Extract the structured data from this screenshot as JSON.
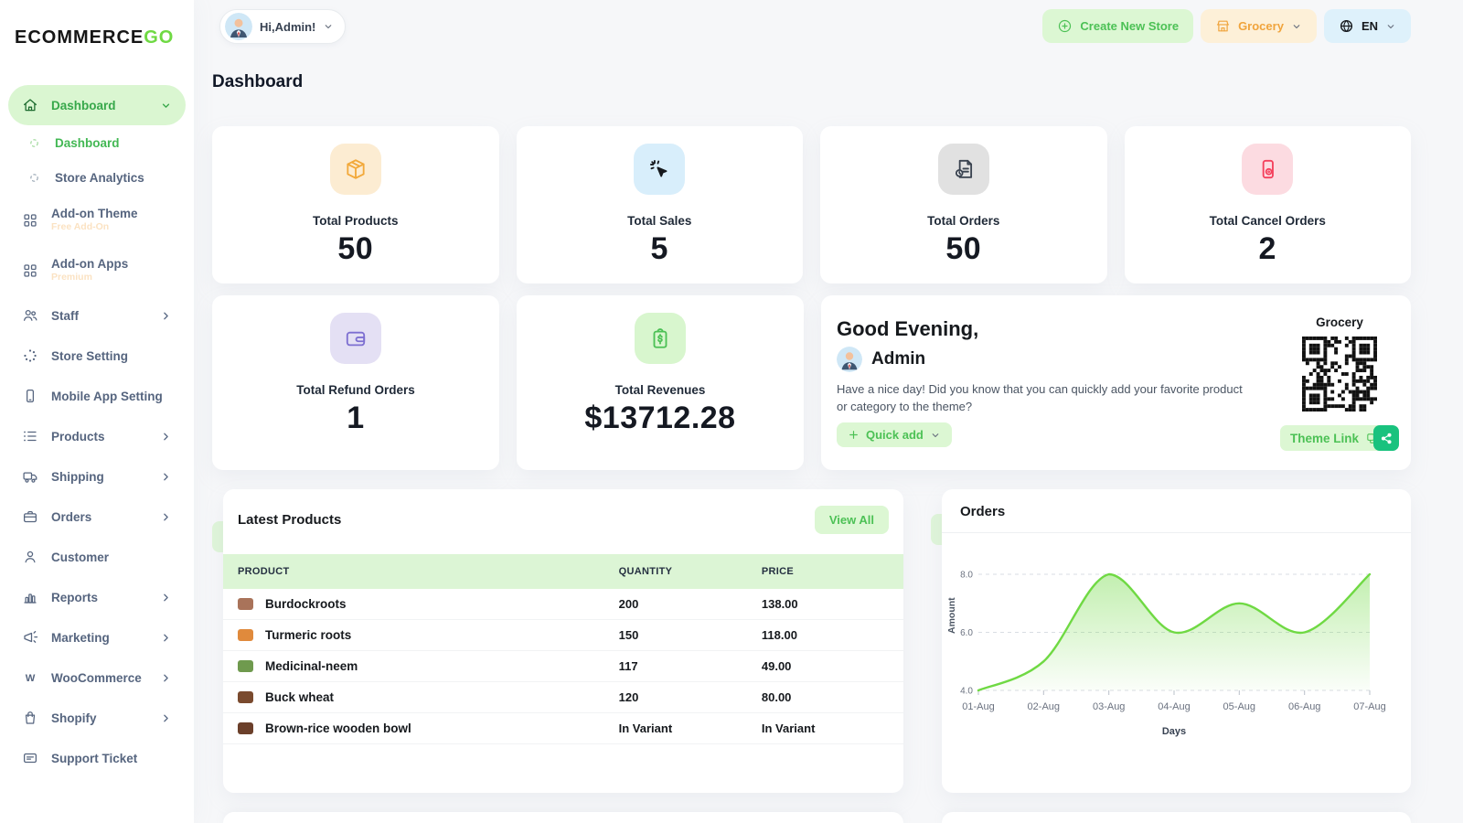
{
  "colors": {
    "accent_green": "#6fd943",
    "accent_green_text": "#4cc155",
    "accent_green_bg": "#dcf7d3",
    "orange": "#f0a43c",
    "orange_bg": "#fdf0d8",
    "blue_bg": "#def1fb",
    "share_button": "#19c27e",
    "table_header_bg": "#dcf5d5"
  },
  "brand": {
    "logo_text": "ECOMMERCE",
    "logo_accent": "GO"
  },
  "topbar": {
    "greeting": "Hi,Admin!",
    "create_store": "Create New Store",
    "store": "Grocery",
    "language": "EN"
  },
  "page_title": "Dashboard",
  "sidebar": {
    "items": [
      {
        "name": "sidebar-group-dashboard",
        "label": "Dashboard",
        "icon": "home-icon",
        "type": "group",
        "chevron": "down",
        "active": true
      },
      {
        "name": "sidebar-item-dashboard",
        "label": "Dashboard",
        "icon": "loader-icon",
        "type": "sub",
        "active": true
      },
      {
        "name": "sidebar-item-store-analytics",
        "label": "Store Analytics",
        "icon": "loader-icon",
        "type": "sub"
      },
      {
        "name": "sidebar-item-addon-theme",
        "label": "Add-on Theme",
        "icon": "grid-icon",
        "badge": "Free Add-On"
      },
      {
        "name": "sidebar-item-addon-apps",
        "label": "Add-on Apps",
        "icon": "grid-icon",
        "badge": "Premium"
      },
      {
        "name": "sidebar-item-staff",
        "label": "Staff",
        "icon": "users-icon",
        "chevron": "right"
      },
      {
        "name": "sidebar-item-store-setting",
        "label": "Store Setting",
        "icon": "spinner-icon"
      },
      {
        "name": "sidebar-item-mobile-app-setting",
        "label": "Mobile App Setting",
        "icon": "mobile-icon"
      },
      {
        "name": "sidebar-item-products",
        "label": "Products",
        "icon": "list-icon",
        "chevron": "right"
      },
      {
        "name": "sidebar-item-shipping",
        "label": "Shipping",
        "icon": "truck-icon",
        "chevron": "right"
      },
      {
        "name": "sidebar-item-orders",
        "label": "Orders",
        "icon": "briefcase-icon",
        "chevron": "right"
      },
      {
        "name": "sidebar-item-customer",
        "label": "Customer",
        "icon": "user-icon"
      },
      {
        "name": "sidebar-item-reports",
        "label": "Reports",
        "icon": "barchart-icon",
        "chevron": "right"
      },
      {
        "name": "sidebar-item-marketing",
        "label": "Marketing",
        "icon": "megaphone-icon",
        "chevron": "right"
      },
      {
        "name": "sidebar-item-woocommerce",
        "label": "WooCommerce",
        "icon": "woo-icon",
        "chevron": "right"
      },
      {
        "name": "sidebar-item-shopify",
        "label": "Shopify",
        "icon": "bag-icon",
        "chevron": "right"
      },
      {
        "name": "sidebar-item-support-ticket",
        "label": "Support Ticket",
        "icon": "ticket-icon"
      }
    ]
  },
  "stats": [
    {
      "name": "stat-total-products",
      "label": "Total Products",
      "value": "50",
      "icon": "package-icon",
      "icon_color": "#f2a93b",
      "icon_bg": "#fcecd2"
    },
    {
      "name": "stat-total-sales",
      "label": "Total Sales",
      "value": "5",
      "icon": "cursor-click-icon",
      "icon_color": "#16191d",
      "icon_bg": "#d8eefb"
    },
    {
      "name": "stat-total-orders",
      "label": "Total Orders",
      "value": "50",
      "icon": "order-doc-icon",
      "icon_color": "#3a4350",
      "icon_bg": "#e1e1e1"
    },
    {
      "name": "stat-total-cancel-orders",
      "label": "Total Cancel Orders",
      "value": "2",
      "icon": "cancel-mobile-icon",
      "icon_color": "#f4405c",
      "icon_bg": "#fcdbe1"
    },
    {
      "name": "stat-total-refund-orders",
      "label": "Total Refund Orders",
      "value": "1",
      "icon": "wallet-icon",
      "icon_color": "#7d6fd1",
      "icon_bg": "#e4e0f4"
    },
    {
      "name": "stat-total-revenues",
      "label": "Total Revenues",
      "value": "$13712.28",
      "icon": "revenue-icon",
      "icon_color": "#4cc155",
      "icon_bg": "#d8f6ce"
    }
  ],
  "greeting_card": {
    "title": "Good Evening,",
    "user": "Admin",
    "message": "Have a nice day! Did you know that you can quickly add your favorite product or category to the theme?",
    "quick_add": "Quick add",
    "store_label": "Grocery",
    "theme_link": "Theme Link"
  },
  "latest_products": {
    "title": "Latest Products",
    "view_all": "View All",
    "columns": [
      "PRODUCT",
      "QUANTITY",
      "PRICE"
    ],
    "rows": [
      {
        "name": "Burdockroots",
        "quantity": "200",
        "price": "138.00",
        "thumb_color": "#a9735a"
      },
      {
        "name": "Turmeric roots",
        "quantity": "150",
        "price": "118.00",
        "thumb_color": "#e08a3c"
      },
      {
        "name": "Medicinal-neem",
        "quantity": "117",
        "price": "49.00",
        "thumb_color": "#6f9a4e"
      },
      {
        "name": "Buck wheat",
        "quantity": "120",
        "price": "80.00",
        "thumb_color": "#7a4a2e"
      },
      {
        "name": "Brown-rice wooden bowl",
        "quantity": "In Variant",
        "price": "In Variant",
        "thumb_color": "#6b3f2a"
      }
    ]
  },
  "chart_data": {
    "type": "area",
    "title": "Orders",
    "x": [
      "01-Aug",
      "02-Aug",
      "03-Aug",
      "04-Aug",
      "05-Aug",
      "06-Aug",
      "07-Aug"
    ],
    "series": [
      {
        "name": "Amount",
        "values": [
          4,
          5,
          8,
          6,
          7,
          6,
          8
        ]
      }
    ],
    "xlabel": "Days",
    "ylabel": "Amount",
    "ylim": [
      4,
      8
    ],
    "yticks": [
      4.0,
      6.0,
      8.0
    ],
    "ytick_labels": [
      "4.0",
      "6.0",
      "8.0"
    ],
    "grid": "horizontal-dashed",
    "legend": "none",
    "line_color": "#6fd943"
  }
}
